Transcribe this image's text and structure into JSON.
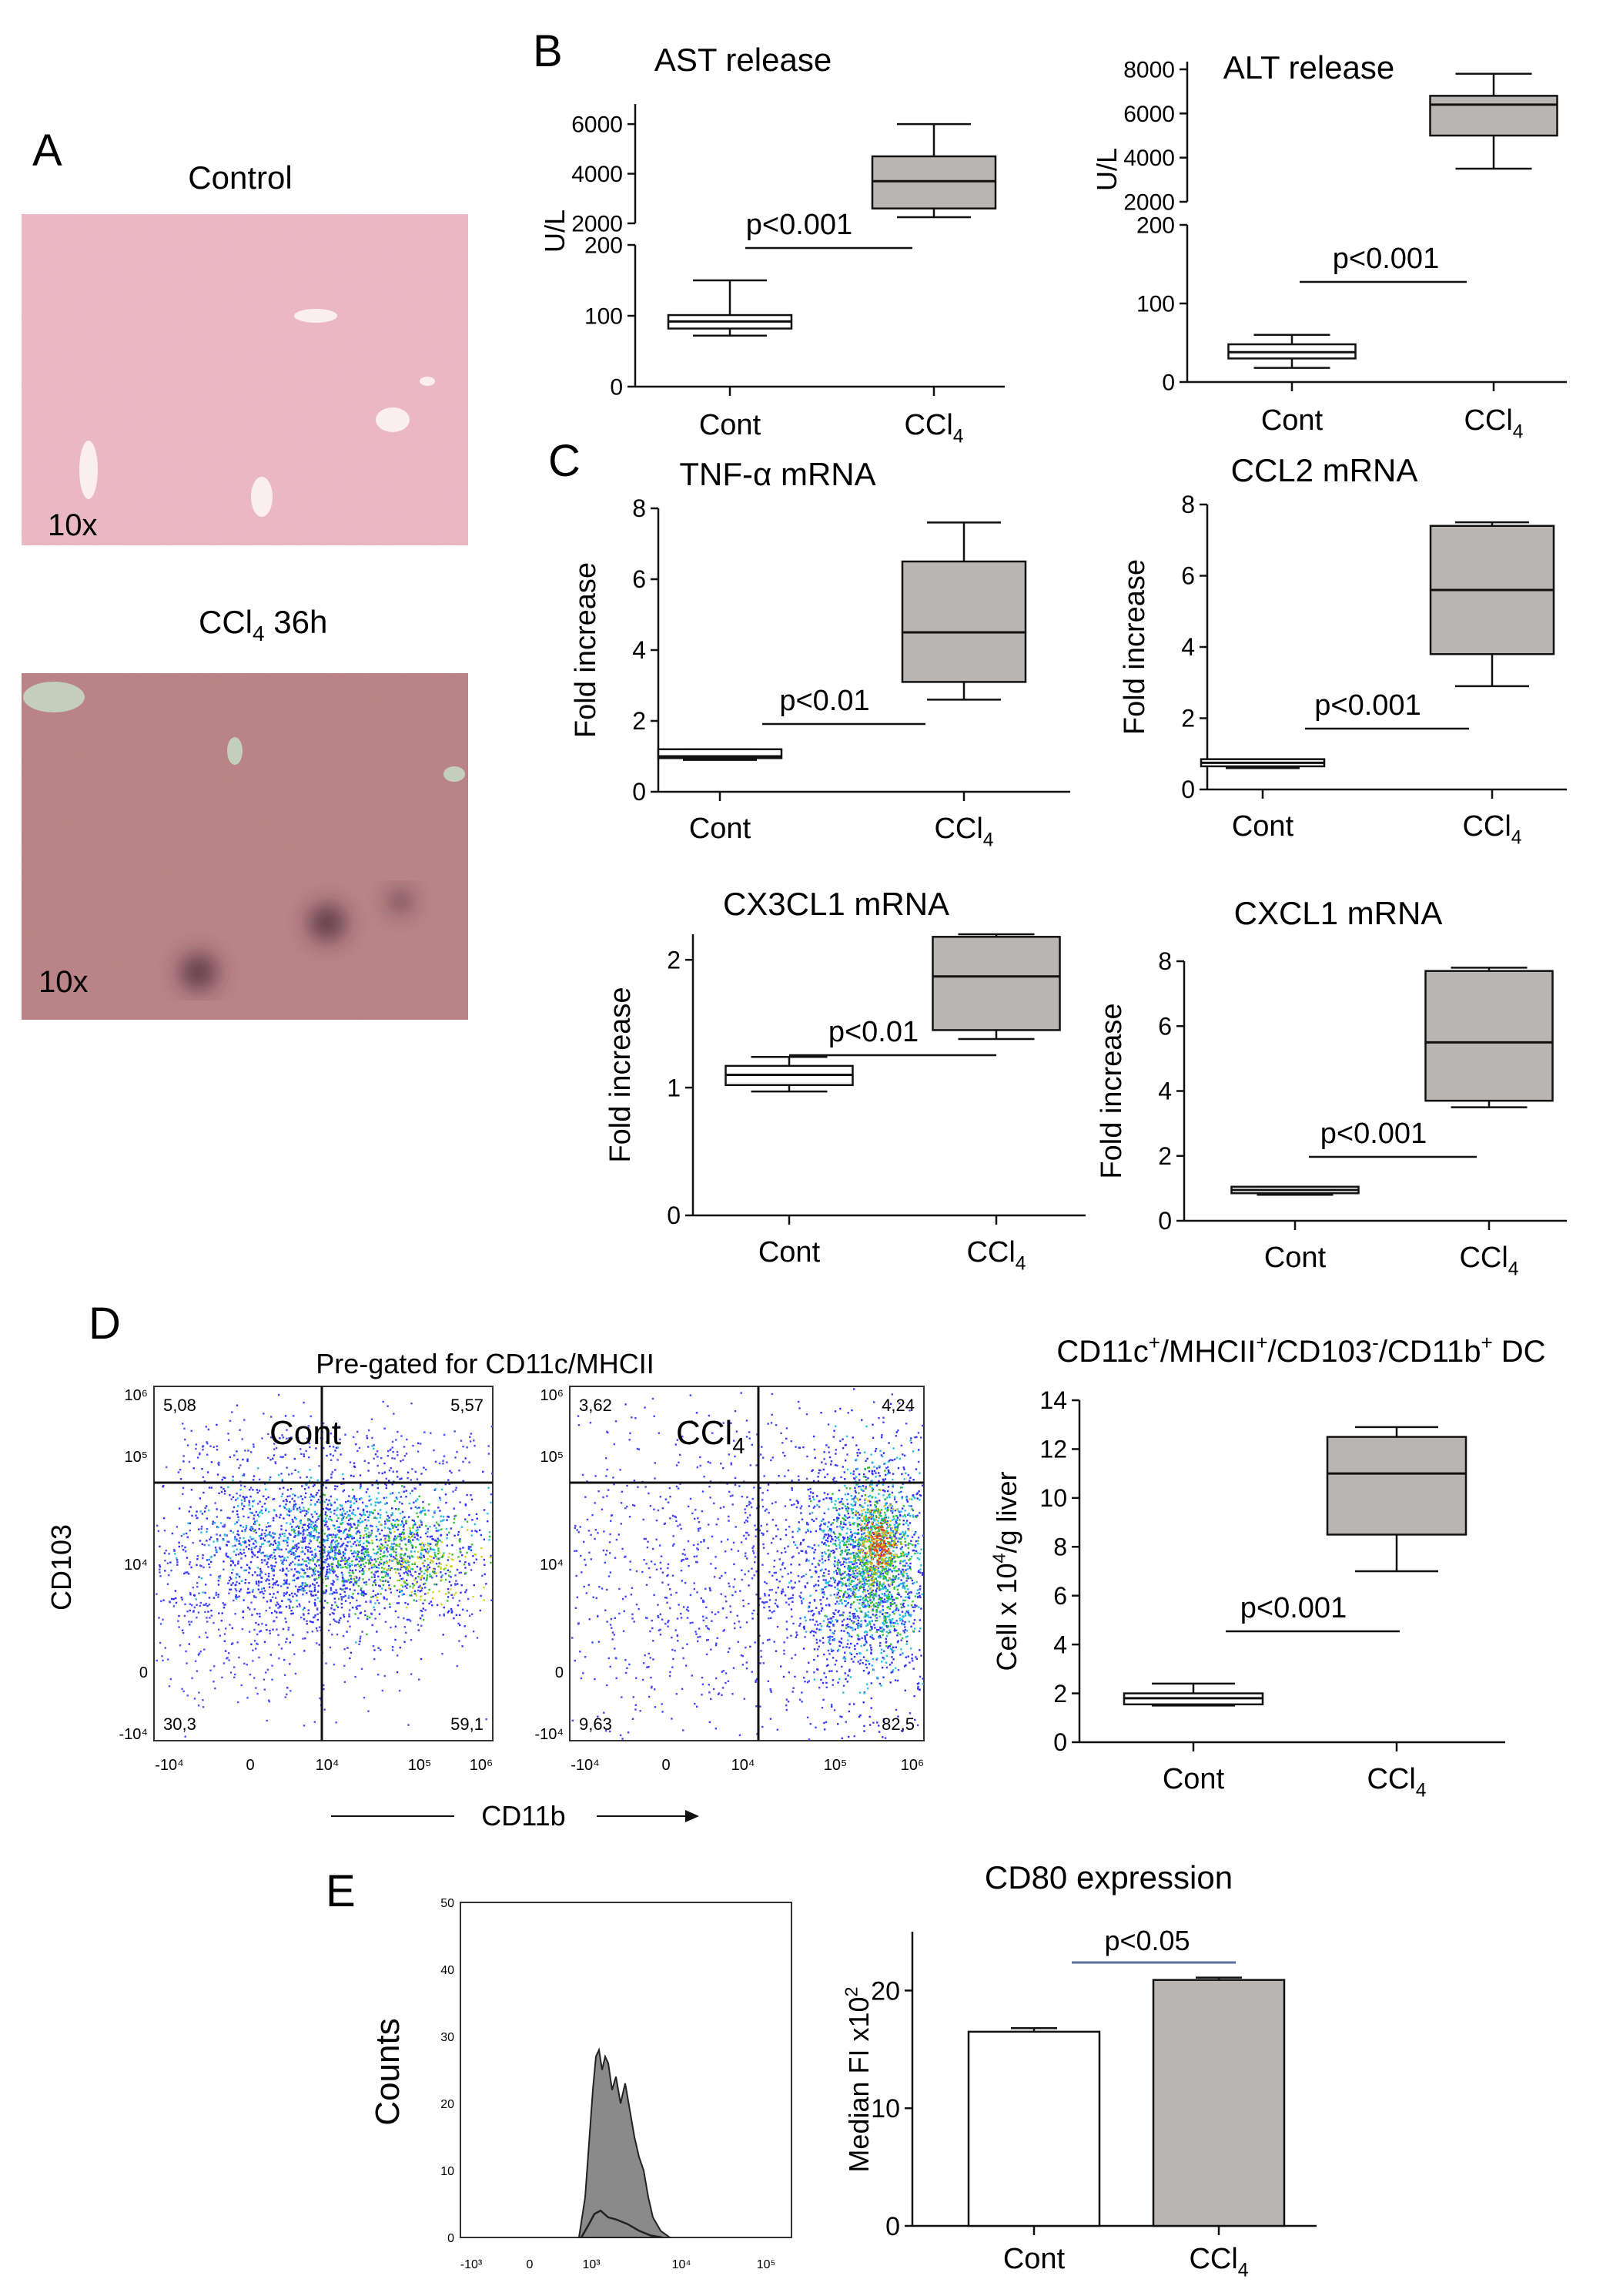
{
  "panel_letters": {
    "a": "A",
    "b": "B",
    "c": "C",
    "d": "D",
    "e": "E"
  },
  "panel_a": {
    "control_title": "Control",
    "ccl4_title": "CCl",
    "ccl4_sub": "4",
    "ccl4_suffix": " 36h",
    "magnification": "10x",
    "colors": {
      "control_stain": "#ecc3cc",
      "ccl4_stain": "#b58f80"
    }
  },
  "group_labels": {
    "cont": "Cont",
    "ccl": "CCl",
    "ccl_sub": "4"
  },
  "box_colors": {
    "cont": "#ffffff",
    "ccl4": "#b9b5b3"
  },
  "chart_data": [
    {
      "id": "ast",
      "type": "box",
      "title": "AST release",
      "ylabel": "U/L",
      "broken_axis": true,
      "lower_segment": {
        "ylim": [
          0,
          200
        ],
        "ticks": [
          0,
          100,
          200
        ]
      },
      "upper_segment": {
        "ylim": [
          2000,
          6500
        ],
        "ticks": [
          2000,
          4000,
          6000
        ]
      },
      "categories": [
        "Cont",
        "CCl4"
      ],
      "boxes": [
        {
          "min": 72,
          "q1": 82,
          "median": 92,
          "q3": 101,
          "max": 150
        },
        {
          "min": 2250,
          "q1": 2600,
          "median": 3700,
          "q3": 4700,
          "max": 6000
        }
      ],
      "annotation": "p<0.001"
    },
    {
      "id": "alt",
      "type": "box",
      "title": "ALT release",
      "ylabel": "U/L",
      "broken_axis": true,
      "lower_segment": {
        "ylim": [
          0,
          200
        ],
        "ticks": [
          0,
          100,
          200
        ]
      },
      "upper_segment": {
        "ylim": [
          2000,
          8000
        ],
        "ticks": [
          2000,
          4000,
          6000,
          8000
        ]
      },
      "categories": [
        "Cont",
        "CCl4"
      ],
      "boxes": [
        {
          "min": 18,
          "q1": 30,
          "median": 38,
          "q3": 48,
          "max": 60
        },
        {
          "min": 3500,
          "q1": 5000,
          "median": 6400,
          "q3": 6800,
          "max": 7800
        }
      ],
      "annotation": "p<0.001"
    },
    {
      "id": "tnf",
      "type": "box",
      "title": "TNF-α mRNA",
      "ylabel": "Fold increase",
      "ylim": [
        0,
        8
      ],
      "yticks": [
        0,
        2,
        4,
        6,
        8
      ],
      "categories": [
        "Cont",
        "CCl4"
      ],
      "boxes": [
        {
          "min": 0.9,
          "q1": 0.95,
          "median": 1.0,
          "q3": 1.2,
          "max": 1.2
        },
        {
          "min": 2.6,
          "q1": 3.1,
          "median": 4.5,
          "q3": 6.5,
          "max": 7.6
        }
      ],
      "annotation": "p<0.01"
    },
    {
      "id": "ccl2",
      "type": "box",
      "title": "CCL2 mRNA",
      "ylabel": "Fold increase",
      "ylim": [
        0,
        8
      ],
      "yticks": [
        0,
        2,
        4,
        6,
        8
      ],
      "categories": [
        "Cont",
        "CCl4"
      ],
      "boxes": [
        {
          "min": 0.6,
          "q1": 0.65,
          "median": 0.75,
          "q3": 0.85,
          "max": 0.85
        },
        {
          "min": 2.9,
          "q1": 3.8,
          "median": 5.6,
          "q3": 7.4,
          "max": 7.5
        }
      ],
      "annotation": "p<0.001"
    },
    {
      "id": "cx3cl1",
      "type": "box",
      "title": "CX3CL1 mRNA",
      "ylabel": "Fold increase",
      "ylim": [
        0,
        2.2
      ],
      "yticks": [
        0,
        1,
        2
      ],
      "categories": [
        "Cont",
        "CCl4"
      ],
      "boxes": [
        {
          "min": 0.97,
          "q1": 1.02,
          "median": 1.1,
          "q3": 1.17,
          "max": 1.24
        },
        {
          "min": 1.38,
          "q1": 1.45,
          "median": 1.87,
          "q3": 2.18,
          "max": 2.2
        }
      ],
      "annotation": "p<0.01"
    },
    {
      "id": "cxcl1",
      "type": "box",
      "title": "CXCL1 mRNA",
      "ylabel": "Fold increase",
      "ylim": [
        0,
        8
      ],
      "yticks": [
        0,
        2,
        4,
        6,
        8
      ],
      "categories": [
        "Cont",
        "CCl4"
      ],
      "boxes": [
        {
          "min": 0.8,
          "q1": 0.85,
          "median": 0.95,
          "q3": 1.05,
          "max": 1.05
        },
        {
          "min": 3.5,
          "q1": 3.7,
          "median": 5.5,
          "q3": 7.7,
          "max": 7.8
        }
      ],
      "annotation": "p<0.001"
    },
    {
      "id": "dc",
      "type": "box",
      "title_parts": [
        "CD11c",
        "+",
        "/MHCII",
        "+",
        "/CD103",
        "-",
        "/CD11b",
        "+",
        " DC"
      ],
      "ylabel_parts": [
        "Cell x 10",
        "4",
        "/g liver"
      ],
      "ylim": [
        0,
        14
      ],
      "yticks": [
        0,
        2,
        4,
        6,
        8,
        10,
        12,
        14
      ],
      "categories": [
        "Cont",
        "CCl4"
      ],
      "boxes": [
        {
          "min": 1.5,
          "q1": 1.55,
          "median": 1.8,
          "q3": 2.0,
          "max": 2.4
        },
        {
          "min": 7.0,
          "q1": 8.5,
          "median": 11.0,
          "q3": 12.5,
          "max": 12.9
        }
      ],
      "annotation": "p<0.001"
    },
    {
      "id": "cd80",
      "type": "bar",
      "title": "CD80 expression",
      "ylabel_parts": [
        "Median FI x10",
        "2"
      ],
      "ylim": [
        0,
        25
      ],
      "yticks": [
        0,
        10,
        20
      ],
      "categories": [
        "Cont",
        "CCl4"
      ],
      "values": [
        16.5,
        20.9
      ],
      "errors": [
        0.3,
        0.2
      ],
      "annotation": "p<0.05",
      "annotation_color": "#5a6f9c"
    },
    {
      "id": "flow_cont",
      "type": "scatter",
      "title": "Cont",
      "xlabel": "CD11b",
      "ylabel": "CD103",
      "quadrants": {
        "ul": "5,08",
        "ur": "5,57",
        "ll": "30,3",
        "lr": "59,1"
      }
    },
    {
      "id": "flow_ccl4",
      "type": "scatter",
      "title": "CCl",
      "title_sub": "4",
      "quadrants": {
        "ul": "3,62",
        "ur": "4,24",
        "ll": "9,63",
        "lr": "82,5"
      }
    },
    {
      "id": "histogram",
      "type": "area",
      "ylabel": "Counts",
      "ylim": [
        0,
        50
      ],
      "yticks": [
        0,
        10,
        20,
        30,
        40,
        50
      ]
    }
  ],
  "panel_d": {
    "pregate_label": "Pre-gated for CD11c/MHCII",
    "y_ticks": [
      "10⁶",
      "10⁵",
      "10⁴",
      "0",
      "-10⁴"
    ],
    "x_ticks": [
      "-10⁴",
      "0",
      "10⁴",
      "10⁵",
      "10⁶"
    ]
  },
  "panel_e": {
    "x_ticks": [
      "-10³",
      "0",
      "10³",
      "10⁴",
      "10⁵"
    ]
  }
}
